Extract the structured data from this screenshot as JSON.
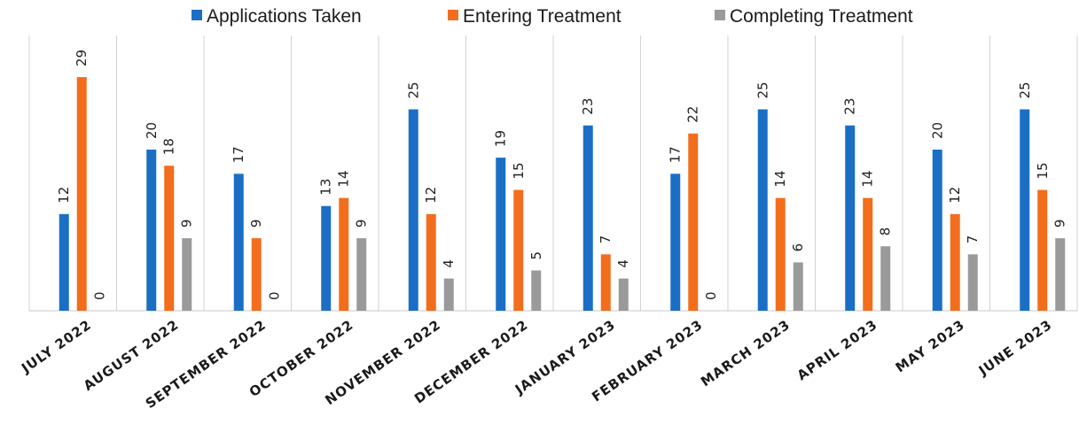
{
  "chart_data": {
    "type": "bar",
    "title": "",
    "xlabel": "",
    "ylabel": "",
    "ylim": [
      0,
      30
    ],
    "grid": "vertical separators between months",
    "legend_position": "top",
    "categories": [
      "JULY 2022",
      "AUGUST 2022",
      "SEPTEMBER 2022",
      "OCTOBER 2022",
      "NOVEMBER 2022",
      "DECEMBER 2022",
      "JANUARY 2023",
      "FEBRUARY 2023",
      "MARCH 2023",
      "APRIL 2023",
      "MAY 2023",
      "JUNE 2023"
    ],
    "series": [
      {
        "name": "Applications Taken",
        "color": "#1a6fc4",
        "values": [
          12,
          20,
          17,
          13,
          25,
          19,
          23,
          17,
          25,
          23,
          20,
          25
        ]
      },
      {
        "name": "Entering Treatment",
        "color": "#f26e1d",
        "values": [
          29,
          18,
          9,
          14,
          12,
          15,
          7,
          22,
          14,
          14,
          12,
          15
        ]
      },
      {
        "name": "Completing Treatment",
        "color": "#9a9a9a",
        "values": [
          0,
          9,
          0,
          9,
          4,
          5,
          4,
          0,
          6,
          8,
          7,
          9
        ]
      }
    ]
  }
}
